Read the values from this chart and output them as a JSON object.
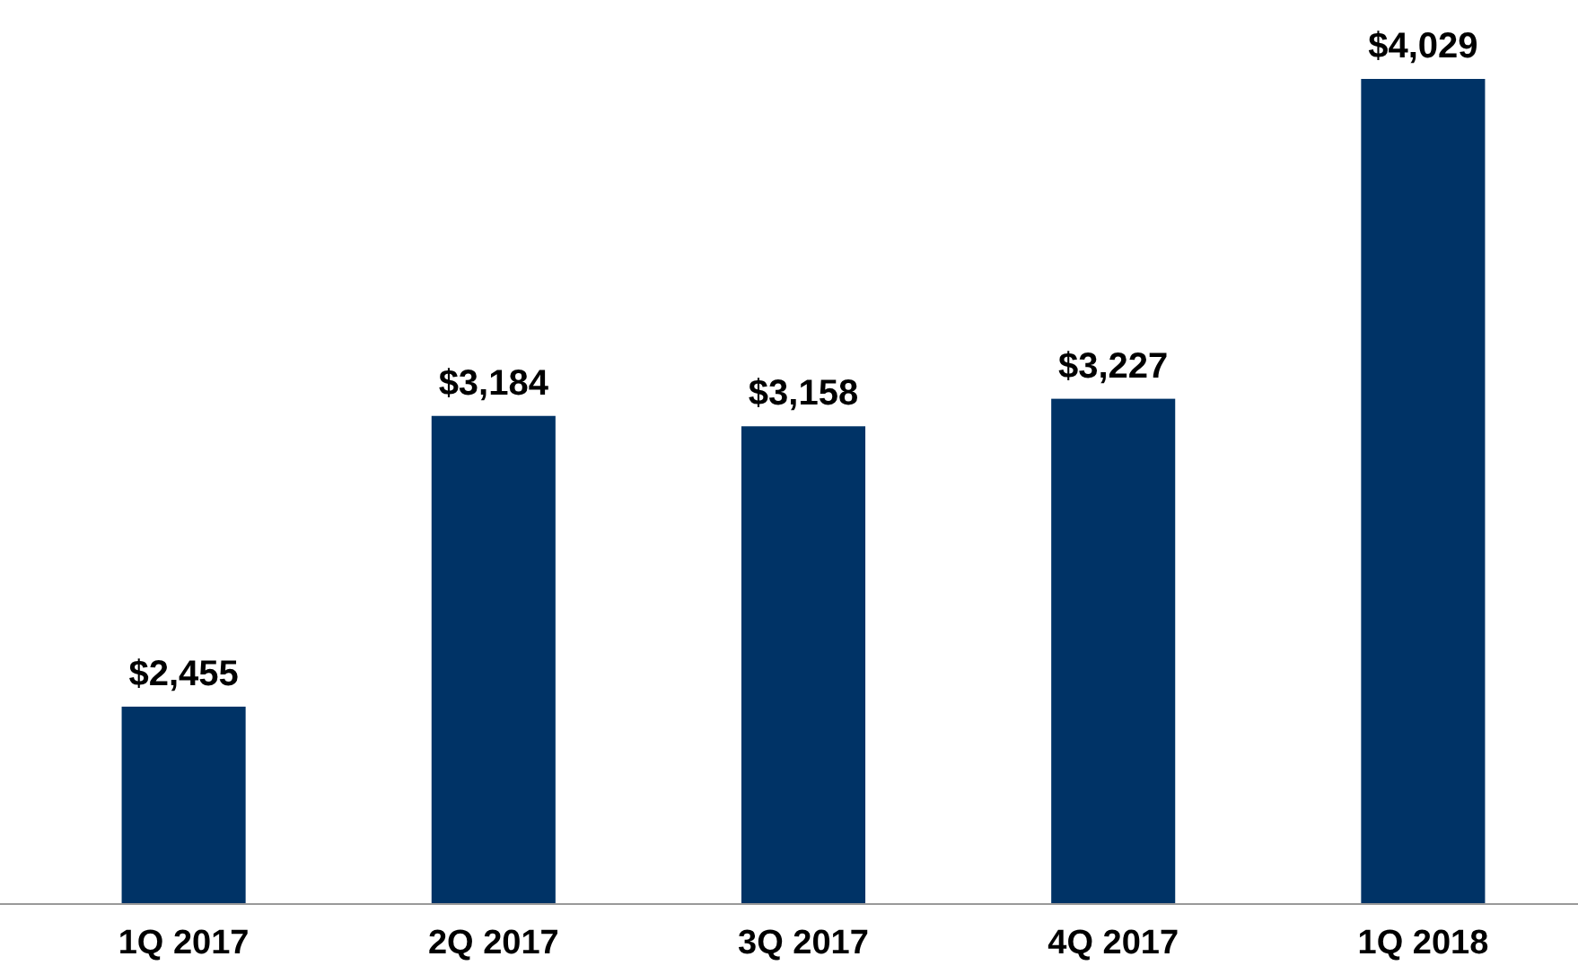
{
  "chart_data": {
    "type": "bar",
    "categories": [
      "1Q 2017",
      "2Q 2017",
      "3Q 2017",
      "4Q 2017",
      "1Q 2018"
    ],
    "values": [
      2455,
      3184,
      3158,
      3227,
      4029
    ],
    "value_labels": [
      "$2,455",
      "$3,184",
      "$3,158",
      "$3,227",
      "$4,029"
    ],
    "color": "#003366",
    "ylim": [
      1960,
      4029
    ],
    "tick_labels": "x"
  }
}
